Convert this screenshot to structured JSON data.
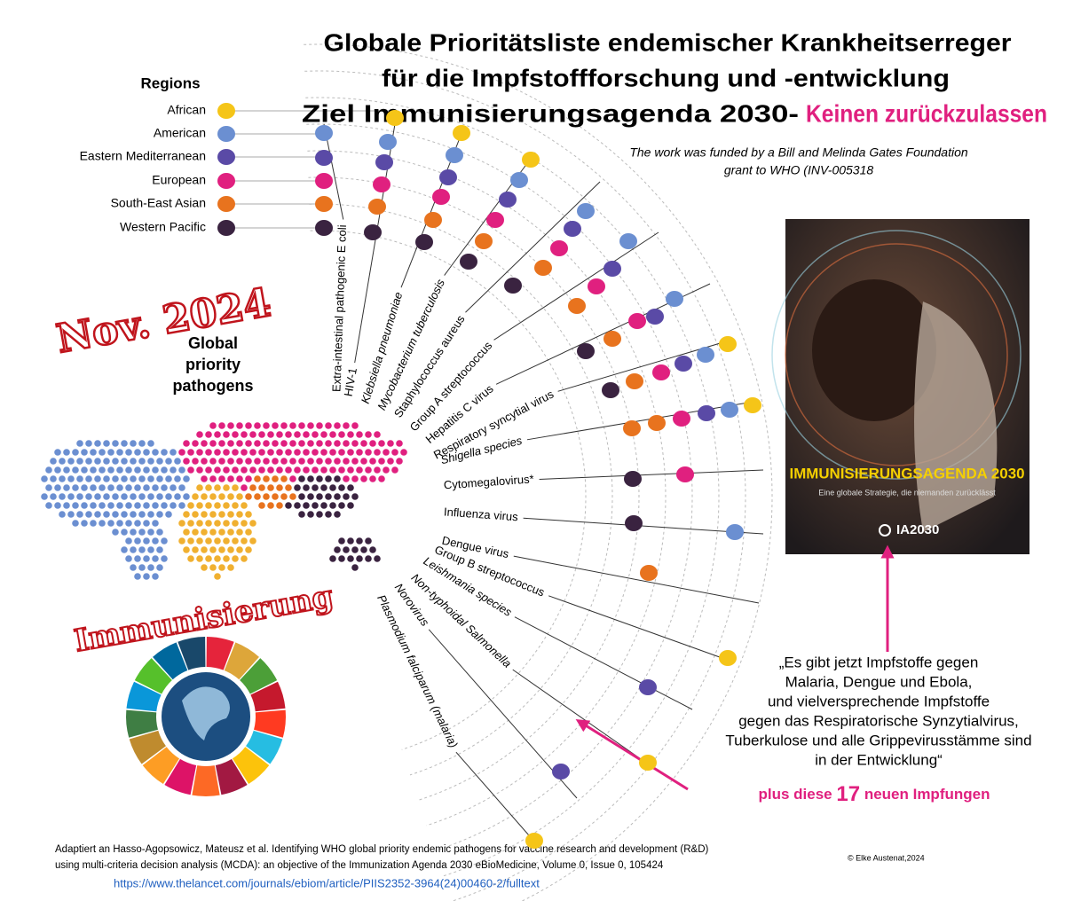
{
  "title": {
    "line1": "Globale Prioritätsliste endemischer Krankheitserreger",
    "line2": "für die Impfstoffforschung und -entwicklung",
    "line3": "Ziel Immunisierungsagenda 2030-",
    "line3_highlight": "Keinen zurückzulassen"
  },
  "funding_note": [
    "The work was funded by a Bill and Melinda Gates Foundation",
    "grant to WHO (INV-005318"
  ],
  "legend": {
    "title": "Regions",
    "regions": [
      {
        "name": "African",
        "color": "#f5c518"
      },
      {
        "name": "American",
        "color": "#6b8fd1"
      },
      {
        "name": "Eastern Mediterranean",
        "color": "#5a4aa6"
      },
      {
        "name": "European",
        "color": "#e0207f"
      },
      {
        "name": "South-East Asian",
        "color": "#e8731e"
      },
      {
        "name": "Western Pacific",
        "color": "#3a2340"
      }
    ]
  },
  "stamp": "Nov. 2024",
  "subtitle": [
    "Global",
    "priority",
    "pathogens"
  ],
  "pathogens": [
    "Extra-intestinal pathogenic E coli",
    "HIV-1",
    "Klebsiella pneumoniae",
    "Mycobacterium tuberculosis",
    "Staphylococcus aureus",
    "Group A streptococcus",
    "Hepatitis C virus",
    "Respiratory syncytial virus",
    "Shigella species",
    "Cytomegalovirus*",
    "Influenza virus",
    "Dengue virus",
    "Group B streptococcus",
    "Leishmania species",
    "Non-typhoidal Salmonella",
    "Norovirus",
    "Plasmodium falciparum (malaria)"
  ],
  "banner": "Immunisierung",
  "cover": {
    "title": "IMMUNISIERUNGSAGENDA 2030",
    "subtitle": "Eine globale Strategie, die niemanden zurücklässt",
    "logo": "IA2030"
  },
  "quote": [
    "„Es gibt jetzt Impfstoffe gegen",
    "Malaria, Dengue und Ebola,",
    "und vielversprechende Impfstoffe",
    "gegen das Respiratorische Synzytialvirus,",
    "Tuberkulose und alle Grippevirusstämme sind",
    "in der Entwicklung“"
  ],
  "highlight": {
    "prefix": "plus diese",
    "number": 17,
    "suffix": "neuen Impfungen"
  },
  "source": [
    "Adaptiert an Hasso-Agopsowicz, Mateusz et al. Identifying WHO global priority endemic pathogens for vaccine research and development (R&D)",
    "using multi-criteria decision analysis (MCDA): an objective of the Immunization Agenda 2030 eBioMedicine, Volume 0, Issue 0, 105424"
  ],
  "link": "https://www.thelancet.com/journals/ebiom/article/PIIS2352-3964(24)00460-2/fulltext",
  "copyright": "© Elke Austenat,2024"
}
